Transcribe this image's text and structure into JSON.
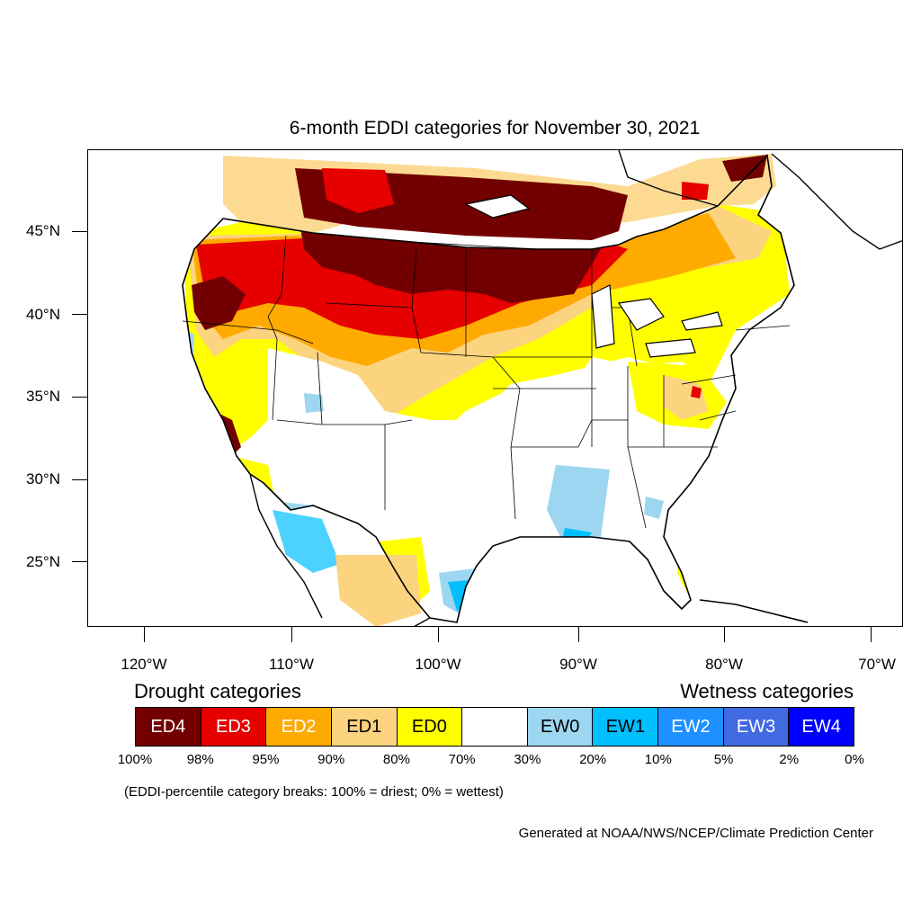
{
  "title": "6-month EDDI categories for November 30, 2021",
  "latitude_labels": [
    "45°N",
    "40°N",
    "35°N",
    "30°N",
    "25°N"
  ],
  "longitude_labels": [
    "120°W",
    "110°W",
    "100°W",
    "90°W",
    "80°W",
    "70°W"
  ],
  "legend": {
    "drought_title": "Drought categories",
    "wetness_title": "Wetness categories",
    "categories": [
      {
        "label": "ED4",
        "color": "#730000",
        "text_color": "#ffffff"
      },
      {
        "label": "ED3",
        "color": "#e60000",
        "text_color": "#ffffff"
      },
      {
        "label": "ED2",
        "color": "#ffaa00",
        "text_color": "#ffffff"
      },
      {
        "label": "ED1",
        "color": "#fcd37f",
        "text_color": "#000000"
      },
      {
        "label": "ED0",
        "color": "#ffff00",
        "text_color": "#000000"
      },
      {
        "label": "",
        "color": "#ffffff",
        "text_color": "#000000"
      },
      {
        "label": "EW0",
        "color": "#9dd6f0",
        "text_color": "#000000"
      },
      {
        "label": "EW1",
        "color": "#00bfff",
        "text_color": "#000000"
      },
      {
        "label": "EW2",
        "color": "#1e90ff",
        "text_color": "#ffffff"
      },
      {
        "label": "EW3",
        "color": "#4169e1",
        "text_color": "#ffffff"
      },
      {
        "label": "EW4",
        "color": "#0000ff",
        "text_color": "#ffffff"
      }
    ],
    "breaks": [
      "100%",
      "98%",
      "95%",
      "90%",
      "80%",
      "70%",
      "30%",
      "20%",
      "10%",
      "5%",
      "2%",
      "0%"
    ]
  },
  "note": "(EDDI-percentile category breaks: 100% = driest; 0% = wettest)",
  "credit": "Generated at NOAA/NWS/NCEP/Climate Prediction Center"
}
